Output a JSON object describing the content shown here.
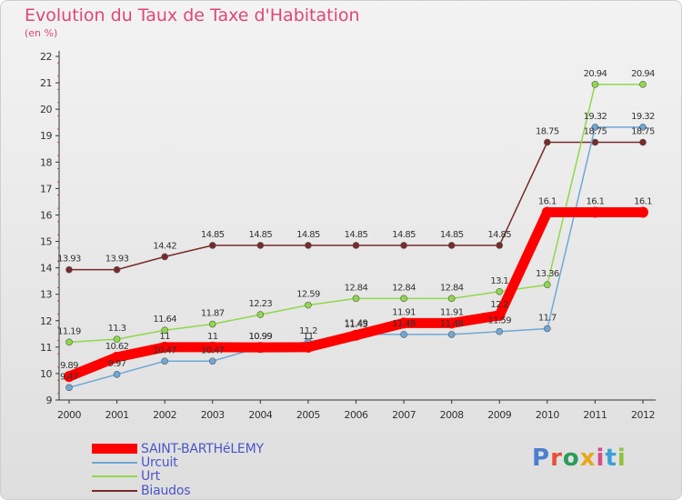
{
  "chart_data": {
    "type": "line",
    "title": "Evolution du Taux de Taxe d'Habitation",
    "subtitle": "(en %)",
    "x": [
      "2000",
      "2001",
      "2002",
      "2003",
      "2004",
      "2005",
      "2006",
      "2007",
      "2008",
      "2009",
      "2010",
      "2011",
      "2012"
    ],
    "ylim": [
      9,
      22
    ],
    "yticks": [
      9,
      10,
      11,
      12,
      13,
      14,
      15,
      16,
      17,
      18,
      19,
      20,
      21,
      22
    ],
    "grid": false,
    "legend": "bottom-left",
    "series": [
      {
        "name": "SAINT-BARTHéLEMY",
        "color": "#ff0000",
        "width": 11,
        "values": [
          9.89,
          10.62,
          11,
          11,
          10.99,
          11,
          11.45,
          11.91,
          11.91,
          12.2,
          16.1,
          16.1,
          16.1
        ],
        "labels": [
          "9.89",
          "10.62",
          "11",
          "11",
          "10.99",
          "11",
          "11.45",
          "11.91",
          "11.91",
          "12.2",
          "16.1",
          "16.1",
          "16.1"
        ]
      },
      {
        "name": "Urcuit",
        "color": "#6fa8d6",
        "width": 1.5,
        "values": [
          9.47,
          9.97,
          10.47,
          10.47,
          11.0,
          11.2,
          11.49,
          11.48,
          11.48,
          11.59,
          11.7,
          19.32,
          19.32
        ],
        "labels": [
          "9.47",
          "9.97",
          "10.47",
          "10.47",
          "10.99",
          "11.2",
          "11.49",
          "11.48",
          "11.48",
          "11.59",
          "11.7",
          "19.32",
          "19.32"
        ]
      },
      {
        "name": "Urt",
        "color": "#8fd84a",
        "width": 1.5,
        "values": [
          11.19,
          11.3,
          11.64,
          11.87,
          12.23,
          12.59,
          12.84,
          12.84,
          12.84,
          13.1,
          13.36,
          20.94,
          20.94
        ],
        "labels": [
          "11.19",
          "11.3",
          "11.64",
          "11.87",
          "12.23",
          "12.59",
          "12.84",
          "12.84",
          "12.84",
          "13.1",
          "13.36",
          "20.94",
          "20.94"
        ]
      },
      {
        "name": "Biaudos",
        "color": "#7a2a2a",
        "width": 1.5,
        "values": [
          13.93,
          13.93,
          14.42,
          14.85,
          14.85,
          14.85,
          14.85,
          14.85,
          14.85,
          14.85,
          18.75,
          18.75,
          18.75
        ],
        "labels": [
          "13.93",
          "13.93",
          "14.42",
          "14.85",
          "14.85",
          "14.85",
          "14.85",
          "14.85",
          "14.85",
          "14.85",
          "18.75",
          "18.75",
          "18.75"
        ]
      }
    ]
  },
  "brand": {
    "text": "Proxiti",
    "colors": [
      "#4a7fd1",
      "#e8503a",
      "#2a9b5a",
      "#e8a81a",
      "#d94a8c",
      "#3aa0d9",
      "#8fc43a"
    ]
  }
}
